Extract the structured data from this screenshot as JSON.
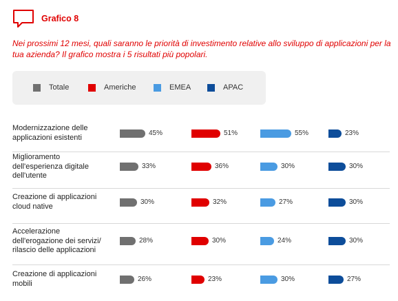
{
  "header": {
    "title": "Grafico 8"
  },
  "question": "Nei prossimi 12 mesi, quali saranno le priorità di investimento relative allo sviluppo di applicazioni per la tua azienda? Il grafico mostra i 5 risultati più popolari.",
  "colors": {
    "Totale": "#707070",
    "Americhe": "#e00000",
    "EMEA": "#4a9be2",
    "APAC": "#0d4d9a",
    "accent": "#e00000"
  },
  "chart_data": {
    "type": "bar",
    "categories": [
      "Modernizzazione delle applicazioni esistenti",
      "Miglioramento dell'esperienza digitale dell'utente",
      "Creazione di applicazioni cloud native",
      "Accelerazione dell'erogazione dei servizi/ rilascio delle applicazioni",
      "Creazione di applicazioni mobili"
    ],
    "category_lines": [
      [
        "Modernizzazione delle",
        "applicazioni esistenti"
      ],
      [
        "Miglioramento",
        "dell'esperienza digitale",
        "dell'utente"
      ],
      [
        "Creazione di applicazioni",
        "cloud native"
      ],
      [
        "Accelerazione",
        "dell'erogazione dei servizi/",
        "rilascio delle applicazioni"
      ],
      [
        "Creazione di applicazioni",
        "mobili"
      ]
    ],
    "series": [
      {
        "name": "Totale",
        "values": [
          45,
          33,
          30,
          28,
          26
        ]
      },
      {
        "name": "Americhe",
        "values": [
          51,
          36,
          32,
          30,
          23
        ]
      },
      {
        "name": "EMEA",
        "values": [
          55,
          30,
          27,
          24,
          30
        ]
      },
      {
        "name": "APAC",
        "values": [
          23,
          30,
          30,
          30,
          27
        ]
      }
    ],
    "value_labels": [
      [
        "45%",
        "51%",
        "55%",
        "23%"
      ],
      [
        "33%",
        "36%",
        "30%",
        "30%"
      ],
      [
        "30%",
        "32%",
        "27%",
        "30%"
      ],
      [
        "28%",
        "30%",
        "24%",
        "30%"
      ],
      [
        "26%",
        "23%",
        "30%",
        "27%"
      ]
    ],
    "unit": "%",
    "legend_position": "top",
    "grid": false,
    "orientation": "horizontal"
  }
}
